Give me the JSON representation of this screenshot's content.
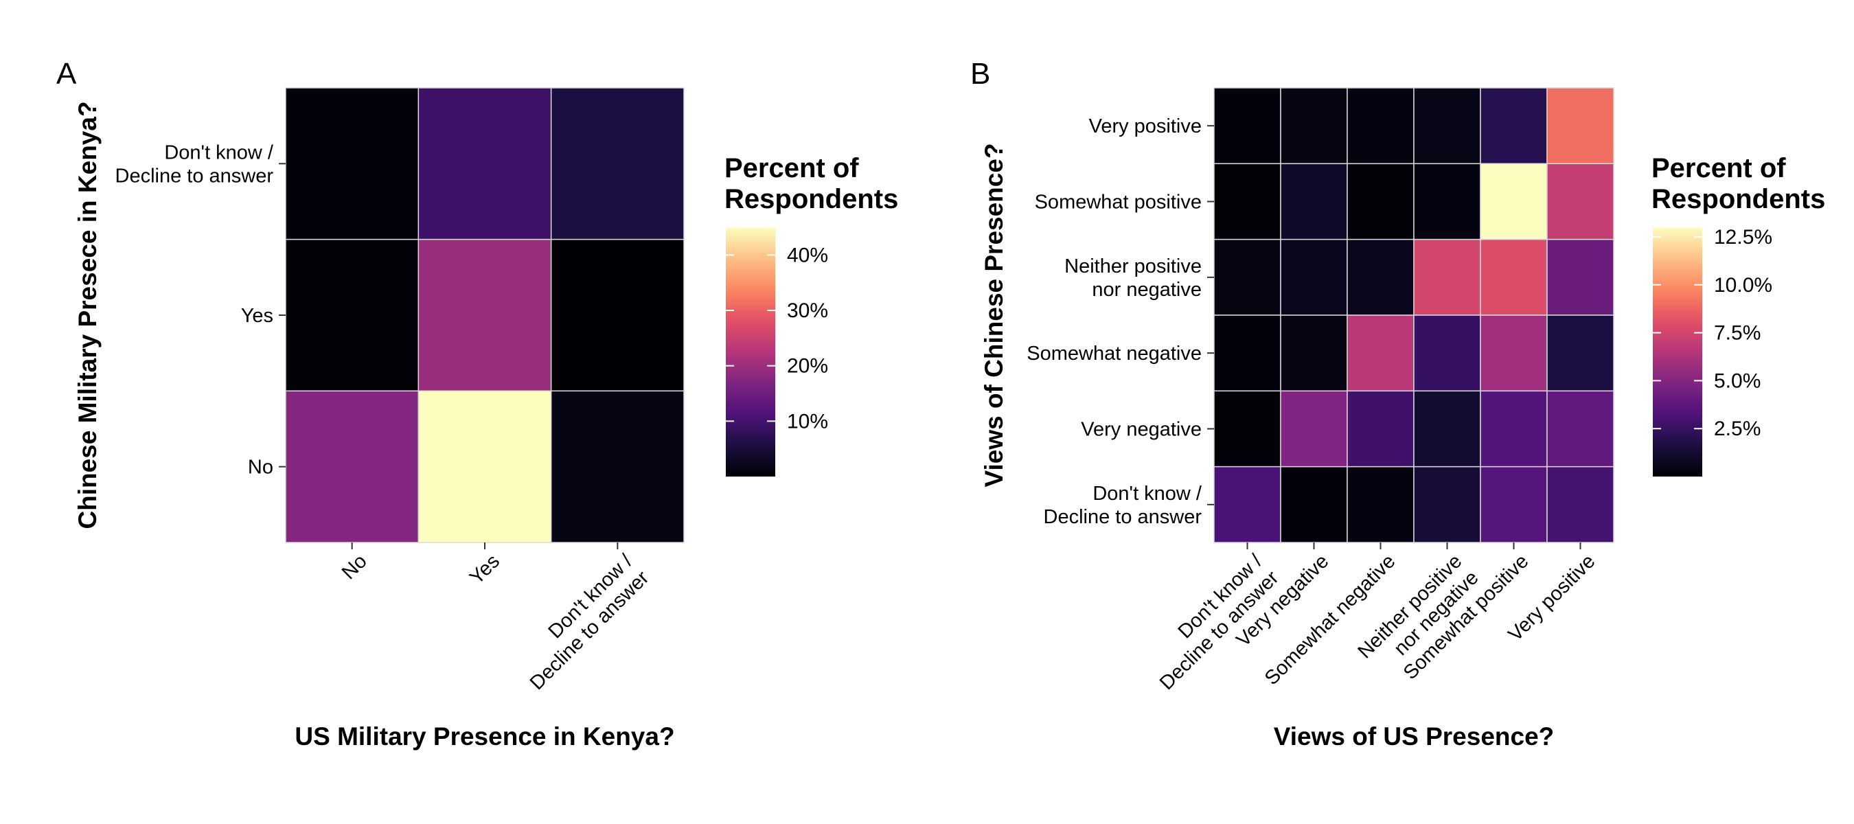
{
  "chart_data": [
    {
      "type": "heatmap",
      "panel_label": "A",
      "xlabel": "US Military Presence in Kenya?",
      "ylabel": "Chinese Military Presece in Kenya?",
      "x_categories": [
        [
          "No"
        ],
        [
          "Yes"
        ],
        [
          "Don't know /",
          "Decline to answer"
        ]
      ],
      "y_categories": [
        [
          "Don't know /",
          "Decline to answer"
        ],
        [
          "Yes"
        ],
        [
          "No"
        ]
      ],
      "values": [
        [
          0.5,
          9.5,
          5.5
        ],
        [
          0.3,
          19.5,
          0.1
        ],
        [
          17.5,
          45.0,
          1.5
        ]
      ],
      "value_unit": "%",
      "color_scale": "magma",
      "legend": {
        "title": [
          "Percent of",
          "Respondents"
        ],
        "min": 0,
        "max": 45,
        "ticks": [
          10,
          20,
          30,
          40
        ],
        "tick_labels": [
          "10%",
          "20%",
          "30%",
          "40%"
        ],
        "placement": "right"
      }
    },
    {
      "type": "heatmap",
      "panel_label": "B",
      "xlabel": "Views of US Presence?",
      "ylabel": "Views of Chinese Presence?",
      "x_categories": [
        [
          "Don't know /",
          "Decline to answer"
        ],
        [
          "Very negative"
        ],
        [
          "Somewhat negative"
        ],
        [
          "Neither positive",
          "nor negative"
        ],
        [
          "Somewhat positive"
        ],
        [
          "Very positive"
        ]
      ],
      "y_categories": [
        [
          "Very positive"
        ],
        [
          "Somewhat positive"
        ],
        [
          "Neither positive",
          "nor negative"
        ],
        [
          "Somewhat negative"
        ],
        [
          "Very negative"
        ],
        [
          "Don't know /",
          "Decline to answer"
        ]
      ],
      "values": [
        [
          0.2,
          0.4,
          0.3,
          0.5,
          2.0,
          9.0
        ],
        [
          0.1,
          1.0,
          0.1,
          0.3,
          13.0,
          7.0
        ],
        [
          0.4,
          0.7,
          0.6,
          7.6,
          7.9,
          4.2
        ],
        [
          0.2,
          0.4,
          6.7,
          2.5,
          5.9,
          1.6
        ],
        [
          0.1,
          4.9,
          2.8,
          1.2,
          3.4,
          3.9
        ],
        [
          3.1,
          0.2,
          0.3,
          1.3,
          3.5,
          2.9
        ]
      ],
      "value_unit": "%",
      "color_scale": "magma",
      "legend": {
        "title": [
          "Percent of",
          "Respondents"
        ],
        "min": 0,
        "max": 13.0,
        "ticks": [
          2.5,
          5.0,
          7.5,
          10.0,
          12.5
        ],
        "tick_labels": [
          "2.5%",
          "5.0%",
          "7.5%",
          "10.0%",
          "12.5%"
        ],
        "placement": "right"
      }
    }
  ]
}
